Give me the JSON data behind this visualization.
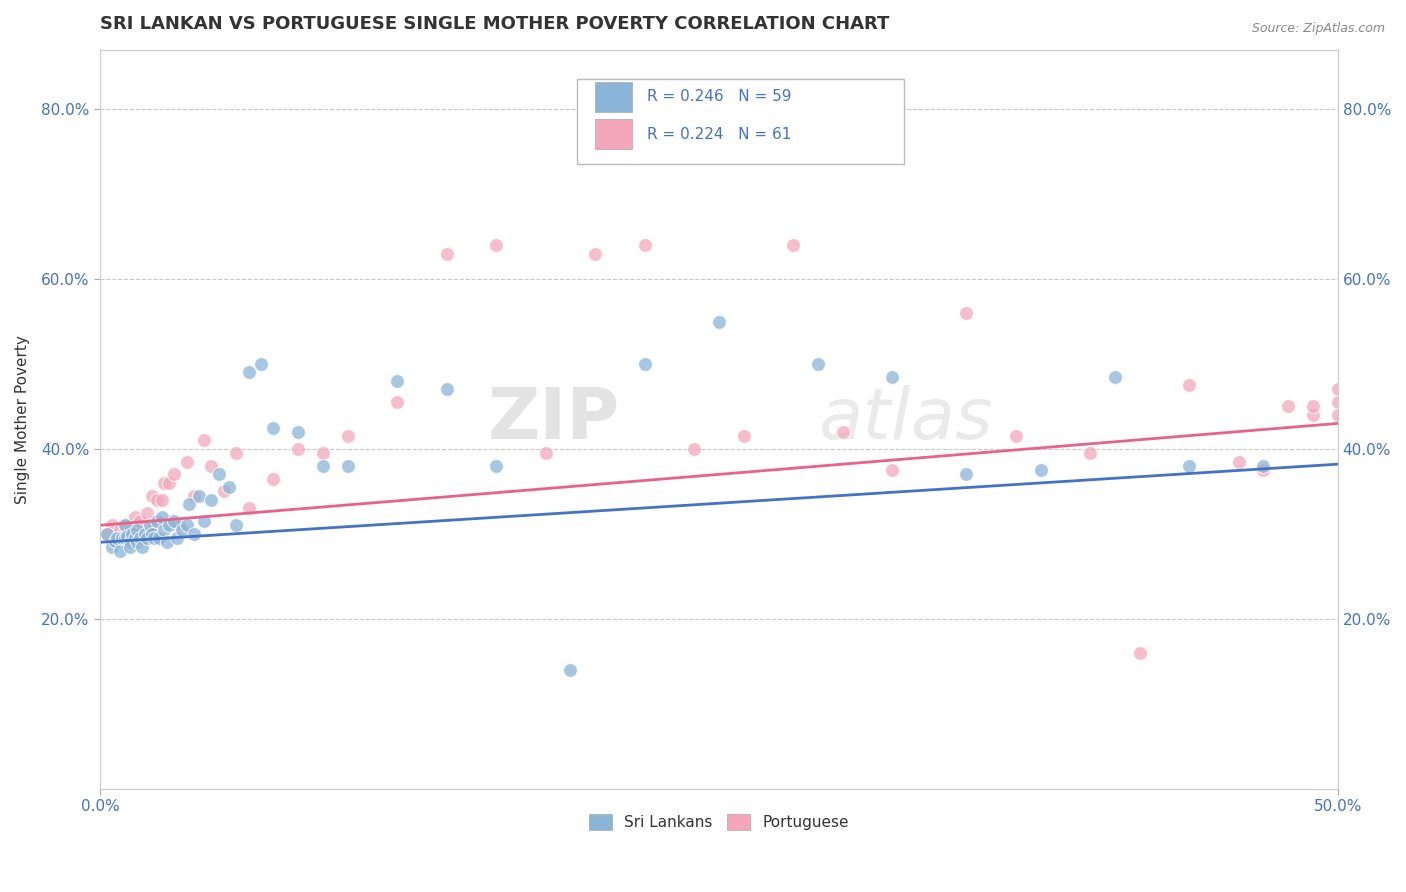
{
  "title": "SRI LANKAN VS PORTUGUESE SINGLE MOTHER POVERTY CORRELATION CHART",
  "source": "Source: ZipAtlas.com",
  "xlabel": "",
  "ylabel": "Single Mother Poverty",
  "xlim": [
    0.0,
    0.5
  ],
  "ylim": [
    0.0,
    0.87
  ],
  "x_ticks": [
    0.0,
    0.5
  ],
  "x_tick_labels": [
    "0.0%",
    "50.0%"
  ],
  "y_ticks": [
    0.2,
    0.4,
    0.6,
    0.8
  ],
  "y_tick_labels": [
    "20.0%",
    "40.0%",
    "60.0%",
    "80.0%"
  ],
  "watermark_zip": "ZIP",
  "watermark_atlas": "atlas",
  "sri_lankans_color": "#8ab4d8",
  "portuguese_color": "#f4a7bb",
  "sri_lankans_line_color": "#4472c4",
  "portuguese_line_color": "#e8638a",
  "background_color": "#ffffff",
  "grid_color": "#c8c8c8",
  "sri_lankans_R": 0.246,
  "sri_lankans_N": 59,
  "portuguese_R": 0.224,
  "portuguese_N": 61,
  "sri_line_start_y": 0.29,
  "sri_line_end_y": 0.382,
  "port_line_start_y": 0.31,
  "port_line_end_y": 0.43,
  "sri_lankans_x": [
    0.003,
    0.005,
    0.006,
    0.007,
    0.008,
    0.009,
    0.01,
    0.01,
    0.011,
    0.012,
    0.012,
    0.013,
    0.014,
    0.015,
    0.015,
    0.016,
    0.017,
    0.018,
    0.019,
    0.02,
    0.021,
    0.022,
    0.023,
    0.024,
    0.025,
    0.026,
    0.027,
    0.028,
    0.03,
    0.031,
    0.033,
    0.035,
    0.036,
    0.038,
    0.04,
    0.042,
    0.045,
    0.048,
    0.052,
    0.055,
    0.06,
    0.065,
    0.07,
    0.08,
    0.09,
    0.1,
    0.12,
    0.14,
    0.16,
    0.19,
    0.22,
    0.25,
    0.29,
    0.32,
    0.35,
    0.38,
    0.41,
    0.44,
    0.47
  ],
  "sri_lankans_y": [
    0.3,
    0.285,
    0.292,
    0.295,
    0.28,
    0.295,
    0.295,
    0.31,
    0.298,
    0.29,
    0.285,
    0.3,
    0.295,
    0.305,
    0.29,
    0.295,
    0.285,
    0.3,
    0.295,
    0.31,
    0.3,
    0.295,
    0.315,
    0.295,
    0.32,
    0.305,
    0.29,
    0.31,
    0.315,
    0.295,
    0.305,
    0.31,
    0.335,
    0.3,
    0.345,
    0.315,
    0.34,
    0.37,
    0.355,
    0.31,
    0.49,
    0.5,
    0.425,
    0.42,
    0.38,
    0.38,
    0.48,
    0.47,
    0.38,
    0.14,
    0.5,
    0.55,
    0.5,
    0.485,
    0.37,
    0.375,
    0.485,
    0.38,
    0.38
  ],
  "portuguese_x": [
    0.003,
    0.005,
    0.006,
    0.007,
    0.008,
    0.009,
    0.01,
    0.011,
    0.012,
    0.013,
    0.014,
    0.015,
    0.015,
    0.016,
    0.017,
    0.018,
    0.019,
    0.02,
    0.021,
    0.022,
    0.023,
    0.025,
    0.026,
    0.028,
    0.03,
    0.032,
    0.035,
    0.038,
    0.042,
    0.045,
    0.05,
    0.055,
    0.06,
    0.07,
    0.08,
    0.09,
    0.1,
    0.12,
    0.14,
    0.16,
    0.18,
    0.2,
    0.22,
    0.24,
    0.26,
    0.28,
    0.3,
    0.32,
    0.35,
    0.37,
    0.4,
    0.42,
    0.44,
    0.46,
    0.47,
    0.48,
    0.49,
    0.49,
    0.5,
    0.5,
    0.5
  ],
  "portuguese_y": [
    0.3,
    0.31,
    0.292,
    0.295,
    0.305,
    0.295,
    0.31,
    0.295,
    0.305,
    0.295,
    0.32,
    0.3,
    0.31,
    0.315,
    0.295,
    0.3,
    0.325,
    0.305,
    0.345,
    0.31,
    0.34,
    0.34,
    0.36,
    0.36,
    0.37,
    0.31,
    0.385,
    0.345,
    0.41,
    0.38,
    0.35,
    0.395,
    0.33,
    0.365,
    0.4,
    0.395,
    0.415,
    0.455,
    0.63,
    0.64,
    0.395,
    0.63,
    0.64,
    0.4,
    0.415,
    0.64,
    0.42,
    0.375,
    0.56,
    0.415,
    0.395,
    0.16,
    0.475,
    0.385,
    0.375,
    0.45,
    0.44,
    0.45,
    0.455,
    0.47,
    0.44
  ]
}
